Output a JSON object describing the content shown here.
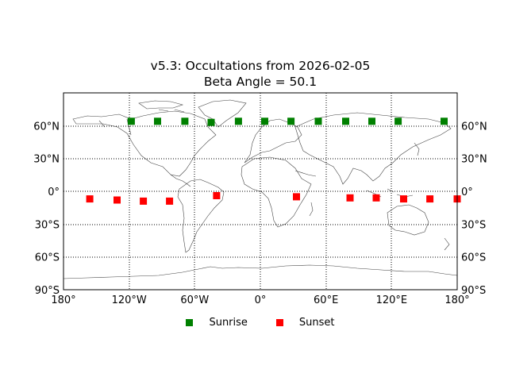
{
  "chart_data": {
    "type": "scatter",
    "title": "v5.3: Occultations from 2026-02-05",
    "subtitle": "Beta Angle = 50.1",
    "projection": "equirectangular (cylindrical) world map with coastlines and country borders",
    "xlabel": "Longitude",
    "ylabel": "Latitude",
    "xlim": [
      -180,
      180
    ],
    "ylim": [
      -90,
      90
    ],
    "x_ticks": [
      -180,
      -120,
      -60,
      0,
      60,
      120,
      180
    ],
    "x_tick_labels": [
      "180°",
      "120°W",
      "60°W",
      "0°",
      "60°E",
      "120°E",
      "180°"
    ],
    "y_ticks": [
      -90,
      -60,
      -30,
      0,
      30,
      60
    ],
    "y_tick_labels": [
      "90°S",
      "60°S",
      "30°S",
      "0°",
      "30°N",
      "60°N"
    ],
    "grid": "dotted black at 60° longitude / 30° latitude intervals",
    "legend_position": "bottom center, below plot",
    "series": [
      {
        "name": "Sunrise",
        "color": "#008000",
        "marker": "square",
        "points": [
          {
            "lon": -118,
            "lat": 64
          },
          {
            "lon": -94,
            "lat": 64
          },
          {
            "lon": -69,
            "lat": 64
          },
          {
            "lon": -45,
            "lat": 63
          },
          {
            "lon": -20,
            "lat": 64
          },
          {
            "lon": 4,
            "lat": 64
          },
          {
            "lon": 28,
            "lat": 64
          },
          {
            "lon": 53,
            "lat": 64
          },
          {
            "lon": 78,
            "lat": 64
          },
          {
            "lon": 102,
            "lat": 64
          },
          {
            "lon": 126,
            "lat": 64
          },
          {
            "lon": 168,
            "lat": 64
          }
        ]
      },
      {
        "name": "Sunset",
        "color": "#ff0000",
        "marker": "square",
        "points": [
          {
            "lon": -156,
            "lat": -7
          },
          {
            "lon": -131,
            "lat": -8
          },
          {
            "lon": -107,
            "lat": -9
          },
          {
            "lon": -83,
            "lat": -9
          },
          {
            "lon": -40,
            "lat": -4
          },
          {
            "lon": 33,
            "lat": -5
          },
          {
            "lon": 82,
            "lat": -6
          },
          {
            "lon": 106,
            "lat": -6
          },
          {
            "lon": 131,
            "lat": -7
          },
          {
            "lon": 155,
            "lat": -7
          },
          {
            "lon": 180,
            "lat": -7
          }
        ]
      }
    ]
  },
  "legend": {
    "items": [
      {
        "label": "Sunrise",
        "color": "#008000"
      },
      {
        "label": "Sunset",
        "color": "#ff0000"
      }
    ]
  }
}
